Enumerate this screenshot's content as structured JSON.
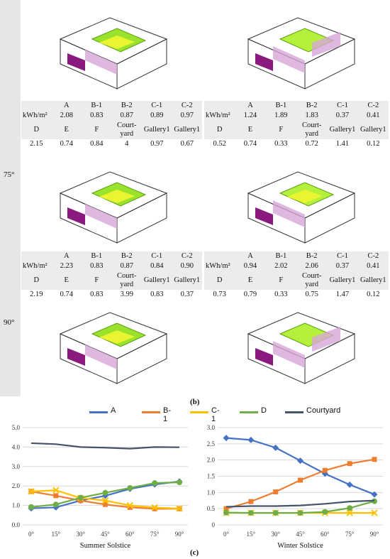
{
  "angles": {
    "a75": "75°",
    "a90": "90°"
  },
  "tables": [
    {
      "unit": "kWh/m²",
      "row1_headers": [
        "A",
        "B-1",
        "B-2",
        "C-1",
        "C-2"
      ],
      "row1_values": [
        "2.08",
        "0.83",
        "0.87",
        "0.89",
        "0.97"
      ],
      "row2_headers": [
        "D",
        "E",
        "F",
        "Court-\nyard",
        "Gallery1",
        "Gallery1"
      ],
      "row2_values": [
        "2.15",
        "0.74",
        "0.84",
        "4",
        "0.97",
        "0.67"
      ]
    },
    {
      "unit": "kWh/m²",
      "row1_headers": [
        "A",
        "B-1",
        "B-2",
        "C-1",
        "C-2"
      ],
      "row1_values": [
        "1.24",
        "1.89",
        "1.83",
        "0.37",
        "0.41"
      ],
      "row2_headers": [
        "D",
        "E",
        "F",
        "Court-\nyard",
        "Gallery1",
        "Gallery1"
      ],
      "row2_values": [
        "0.52",
        "0.74",
        "0.33",
        "0.72",
        "1.41",
        "0.12"
      ]
    },
    {
      "unit": "kWh/m²",
      "row1_headers": [
        "A",
        "B-1",
        "B-2",
        "C-1",
        "C-2"
      ],
      "row1_values": [
        "2.23",
        "0.83",
        "0.87",
        "0.84",
        "0.90"
      ],
      "row2_headers": [
        "D",
        "E",
        "F",
        "Court-\nyard",
        "Gallery1",
        "Gallery1"
      ],
      "row2_values": [
        "2.19",
        "0.74",
        "0.83",
        "3.99",
        "0.83",
        "0.37"
      ]
    },
    {
      "unit": "kWh/m²",
      "row1_headers": [
        "A",
        "B-1",
        "B-2",
        "C-1",
        "C-2"
      ],
      "row1_values": [
        "0.94",
        "2.02",
        "2.06",
        "0.37",
        "0.41"
      ],
      "row2_headers": [
        "D",
        "E",
        "F",
        "Court-\nyard",
        "Gallery1",
        "Gallery1"
      ],
      "row2_values": [
        "0.73",
        "0.79",
        "0.33",
        "0.75",
        "1.47",
        "0.12"
      ]
    }
  ],
  "captions": {
    "b": "(b)",
    "c": "(c)"
  },
  "colors": {
    "A": "#4472c4",
    "B-1": "#ed7d31",
    "C-1": "#ffc000",
    "D": "#70ad47",
    "Courtyard": "#44546a"
  },
  "legend": [
    "A",
    "B-1",
    "C-1",
    "D",
    "Courtyard"
  ],
  "chart_data": [
    {
      "type": "line",
      "title": "Summer Solstice",
      "categories": [
        "0°",
        "15°",
        "30°",
        "45°",
        "60°",
        "75°",
        "90°"
      ],
      "ylim": [
        0,
        5
      ],
      "yticks": [
        "0.0",
        "1.0",
        "2.0",
        "3.0",
        "4.0",
        "5.0"
      ],
      "grid": true,
      "series": [
        {
          "name": "A",
          "values": [
            0.85,
            0.9,
            1.25,
            1.5,
            1.85,
            2.08,
            2.23
          ]
        },
        {
          "name": "B-1",
          "values": [
            1.72,
            1.5,
            1.25,
            1.05,
            0.9,
            0.83,
            0.83
          ]
        },
        {
          "name": "C-1",
          "values": [
            1.72,
            1.78,
            1.38,
            1.25,
            1.0,
            0.89,
            0.84
          ]
        },
        {
          "name": "D",
          "values": [
            0.92,
            1.05,
            1.4,
            1.65,
            1.9,
            2.15,
            2.19
          ]
        },
        {
          "name": "Courtyard",
          "values": [
            4.2,
            4.15,
            4.0,
            3.97,
            3.92,
            4.0,
            3.99
          ]
        }
      ]
    },
    {
      "type": "line",
      "title": "Winter Solstice",
      "categories": [
        "0°",
        "15°",
        "30°",
        "45°",
        "60°",
        "75°",
        "90°"
      ],
      "ylim": [
        0,
        3
      ],
      "yticks": [
        "0",
        "0.5",
        "1.0",
        "1.5",
        "2.0",
        "2.5",
        "3.0"
      ],
      "grid": true,
      "series": [
        {
          "name": "A",
          "values": [
            2.68,
            2.62,
            2.38,
            1.98,
            1.58,
            1.24,
            0.94
          ]
        },
        {
          "name": "B-1",
          "values": [
            0.5,
            0.72,
            1.02,
            1.38,
            1.68,
            1.89,
            2.02
          ]
        },
        {
          "name": "C-1",
          "values": [
            0.37,
            0.37,
            0.37,
            0.37,
            0.37,
            0.37,
            0.37
          ]
        },
        {
          "name": "D",
          "values": [
            0.38,
            0.37,
            0.37,
            0.37,
            0.4,
            0.52,
            0.73
          ]
        },
        {
          "name": "Courtyard",
          "values": [
            0.56,
            0.58,
            0.58,
            0.6,
            0.65,
            0.72,
            0.75
          ]
        }
      ]
    }
  ]
}
